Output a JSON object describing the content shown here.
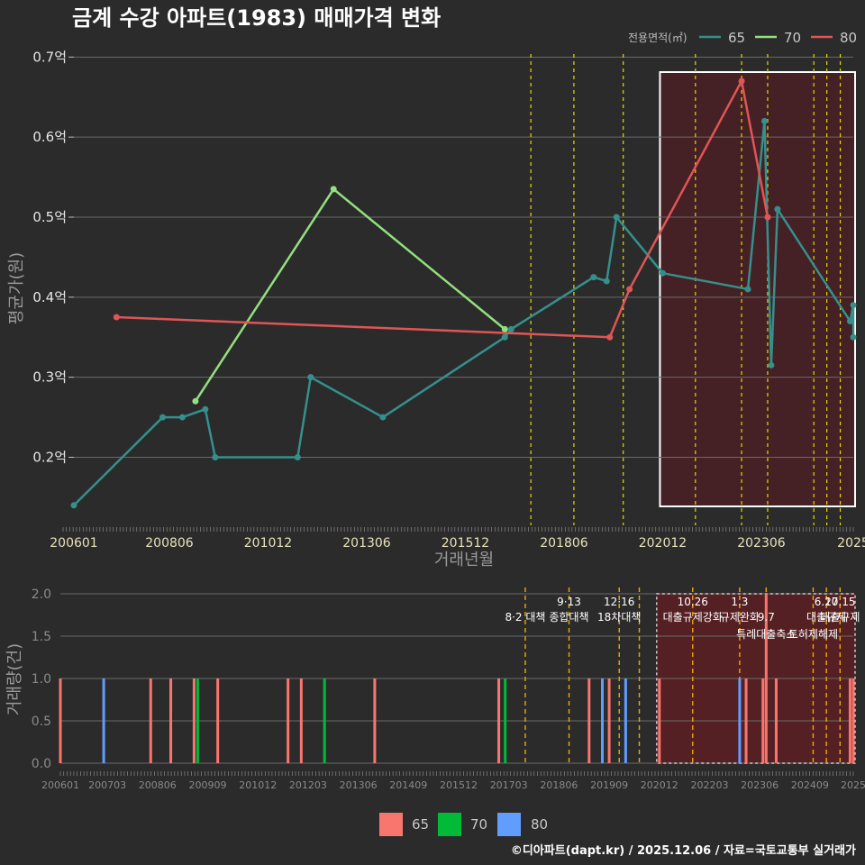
{
  "title": "금계 수강 아파트(1983) 매매가격 변화",
  "footer": "©디아파트(dapt.kr) / 2025.12.06 / 자료=국토교통부 실거래가",
  "colors": {
    "s65": "#35908c",
    "s70": "#93e07e",
    "s80": "#e05555",
    "bar65": "#f8766d",
    "bar70": "#00ba38",
    "bar80": "#619cff",
    "vline": "#e8d800",
    "vline2": "#f0a800"
  },
  "chart_data": [
    {
      "type": "line",
      "title": "금계 수강 아파트(1983) 매매가격 변화",
      "xlabel": "거래년월",
      "ylabel": "평균가(원)",
      "xlim": [
        2006.0,
        2025.75
      ],
      "ylim": [
        0.115,
        0.715
      ],
      "xticks": [
        {
          "label": "200601",
          "t": 2006.0
        },
        {
          "label": "200806",
          "t": 2008.42
        },
        {
          "label": "201012",
          "t": 2010.92
        },
        {
          "label": "201306",
          "t": 2013.42
        },
        {
          "label": "201512",
          "t": 2015.92
        },
        {
          "label": "201806",
          "t": 2018.42
        },
        {
          "label": "202012",
          "t": 2020.92
        },
        {
          "label": "202306",
          "t": 2023.42
        },
        {
          "label": "2025",
          "t": 2025.75
        }
      ],
      "yticks": [
        {
          "label": "0.2억",
          "v": 0.2
        },
        {
          "label": "0.3억",
          "v": 0.3
        },
        {
          "label": "0.4억",
          "v": 0.4
        },
        {
          "label": "0.5억",
          "v": 0.5
        },
        {
          "label": "0.6억",
          "v": 0.6
        },
        {
          "label": "0.7억",
          "v": 0.7
        }
      ],
      "legend": {
        "title": "전용면적(㎡)",
        "items": [
          "65",
          "70",
          "80"
        ]
      },
      "series": [
        {
          "name": "65",
          "x": [
            2006.0,
            2008.25,
            2008.75,
            2009.33,
            2009.58,
            2011.67,
            2012.0,
            2013.83,
            2016.92,
            2017.08,
            2019.17,
            2019.5,
            2019.75,
            2020.92,
            2023.08,
            2023.5,
            2023.67,
            2023.83,
            2025.67,
            2025.75,
            2025.75
          ],
          "y": [
            0.14,
            0.25,
            0.25,
            0.26,
            0.2,
            0.2,
            0.3,
            0.25,
            0.35,
            0.36,
            0.425,
            0.42,
            0.5,
            0.43,
            0.41,
            0.62,
            0.315,
            0.51,
            0.37,
            0.39,
            0.35
          ]
        },
        {
          "name": "70",
          "x": [
            2009.08,
            2012.58,
            2016.92
          ],
          "y": [
            0.27,
            0.535,
            0.36
          ]
        },
        {
          "name": "80",
          "x": [
            2007.08,
            2019.58,
            2020.08,
            2022.92,
            2023.58
          ],
          "y": [
            0.375,
            0.35,
            0.41,
            0.67,
            0.5
          ]
        }
      ],
      "policy_dates": [
        2017.58,
        2018.67,
        2019.92,
        2021.75,
        2022.92,
        2023.58,
        2024.75,
        2025.08,
        2025.42
      ],
      "highlight_range": [
        2020.92,
        2025.75
      ]
    },
    {
      "type": "bar",
      "ylabel": "거래량(건)",
      "xlim": [
        2006.0,
        2025.75
      ],
      "ylim": [
        0,
        2
      ],
      "yticks": [
        {
          "label": "0.0",
          "v": 0
        },
        {
          "label": "0.5",
          "v": 0.5
        },
        {
          "label": "1.0",
          "v": 1
        },
        {
          "label": "1.5",
          "v": 1.5
        },
        {
          "label": "2.0",
          "v": 2
        }
      ],
      "xticks": [
        {
          "label": "200601",
          "t": 2006.0
        },
        {
          "label": "200703",
          "t": 2007.17
        },
        {
          "label": "200806",
          "t": 2008.42
        },
        {
          "label": "200909",
          "t": 2009.67
        },
        {
          "label": "201012",
          "t": 2010.92
        },
        {
          "label": "201203",
          "t": 2012.17
        },
        {
          "label": "201306",
          "t": 2013.42
        },
        {
          "label": "201409",
          "t": 2014.67
        },
        {
          "label": "201512",
          "t": 2015.92
        },
        {
          "label": "201703",
          "t": 2017.17
        },
        {
          "label": "201806",
          "t": 2018.42
        },
        {
          "label": "201909",
          "t": 2019.67
        },
        {
          "label": "202012",
          "t": 2020.92
        },
        {
          "label": "202203",
          "t": 2022.17
        },
        {
          "label": "202306",
          "t": 2023.42
        },
        {
          "label": "202409",
          "t": 2024.67
        },
        {
          "label": "2025",
          "t": 2025.75
        }
      ],
      "legend": {
        "items": [
          "65",
          "70",
          "80"
        ]
      },
      "bars": [
        {
          "t": 2006.0,
          "v": 1,
          "s": "65"
        },
        {
          "t": 2007.08,
          "v": 1,
          "s": "80"
        },
        {
          "t": 2008.25,
          "v": 1,
          "s": "65"
        },
        {
          "t": 2008.75,
          "v": 1,
          "s": "65"
        },
        {
          "t": 2009.33,
          "v": 1,
          "s": "65"
        },
        {
          "t": 2009.42,
          "v": 1,
          "s": "70"
        },
        {
          "t": 2009.92,
          "v": 1,
          "s": "65"
        },
        {
          "t": 2011.67,
          "v": 1,
          "s": "65"
        },
        {
          "t": 2012.0,
          "v": 1,
          "s": "65"
        },
        {
          "t": 2012.58,
          "v": 1,
          "s": "70"
        },
        {
          "t": 2013.83,
          "v": 1,
          "s": "65"
        },
        {
          "t": 2016.92,
          "v": 1,
          "s": "65"
        },
        {
          "t": 2017.08,
          "v": 1,
          "s": "70"
        },
        {
          "t": 2019.17,
          "v": 1,
          "s": "65"
        },
        {
          "t": 2019.5,
          "v": 1,
          "s": "80"
        },
        {
          "t": 2019.67,
          "v": 1,
          "s": "65"
        },
        {
          "t": 2020.08,
          "v": 1,
          "s": "80"
        },
        {
          "t": 2020.92,
          "v": 1,
          "s": "65"
        },
        {
          "t": 2022.92,
          "v": 1,
          "s": "80"
        },
        {
          "t": 2023.08,
          "v": 1,
          "s": "65"
        },
        {
          "t": 2023.5,
          "v": 1,
          "s": "65"
        },
        {
          "t": 2023.58,
          "v": 2,
          "s": "65"
        },
        {
          "t": 2023.83,
          "v": 1,
          "s": "65"
        },
        {
          "t": 2025.67,
          "v": 1,
          "s": "65"
        },
        {
          "t": 2025.75,
          "v": 1,
          "s": "65"
        }
      ],
      "policy_dates": [
        2017.58,
        2018.67,
        2019.92,
        2020.42,
        2021.75,
        2022.92,
        2023.58,
        2024.75,
        2025.08,
        2025.42
      ],
      "highlight_range": [
        2020.92,
        2025.75
      ],
      "annotations": [
        {
          "t": 2017.58,
          "row": 1,
          "text": "8·2 대책"
        },
        {
          "t": 2018.67,
          "row": 0,
          "text": "9·13"
        },
        {
          "t": 2018.67,
          "row": 1,
          "text": "종합대책"
        },
        {
          "t": 2019.92,
          "row": 0,
          "text": "12·16"
        },
        {
          "t": 2019.92,
          "row": 1,
          "text": "18차대책"
        },
        {
          "t": 2021.75,
          "row": 0,
          "text": "10.26"
        },
        {
          "t": 2021.75,
          "row": 1,
          "text": "대출규제강화"
        },
        {
          "t": 2022.92,
          "row": 0,
          "text": "1.3"
        },
        {
          "t": 2022.92,
          "row": 1,
          "text": "규제완화"
        },
        {
          "t": 2023.58,
          "row": 1,
          "text": "9.7"
        },
        {
          "t": 2023.58,
          "row": 2,
          "text": "특례대출축소"
        },
        {
          "t": 2024.75,
          "row": 2,
          "text": "토허제해제"
        },
        {
          "t": 2025.08,
          "row": 0,
          "text": "6.27"
        },
        {
          "t": 2025.08,
          "row": 1,
          "text": "대출규제"
        },
        {
          "t": 2025.42,
          "row": 0,
          "text": "10.15"
        },
        {
          "t": 2025.42,
          "row": 1,
          "text": "대출규제"
        }
      ]
    }
  ]
}
